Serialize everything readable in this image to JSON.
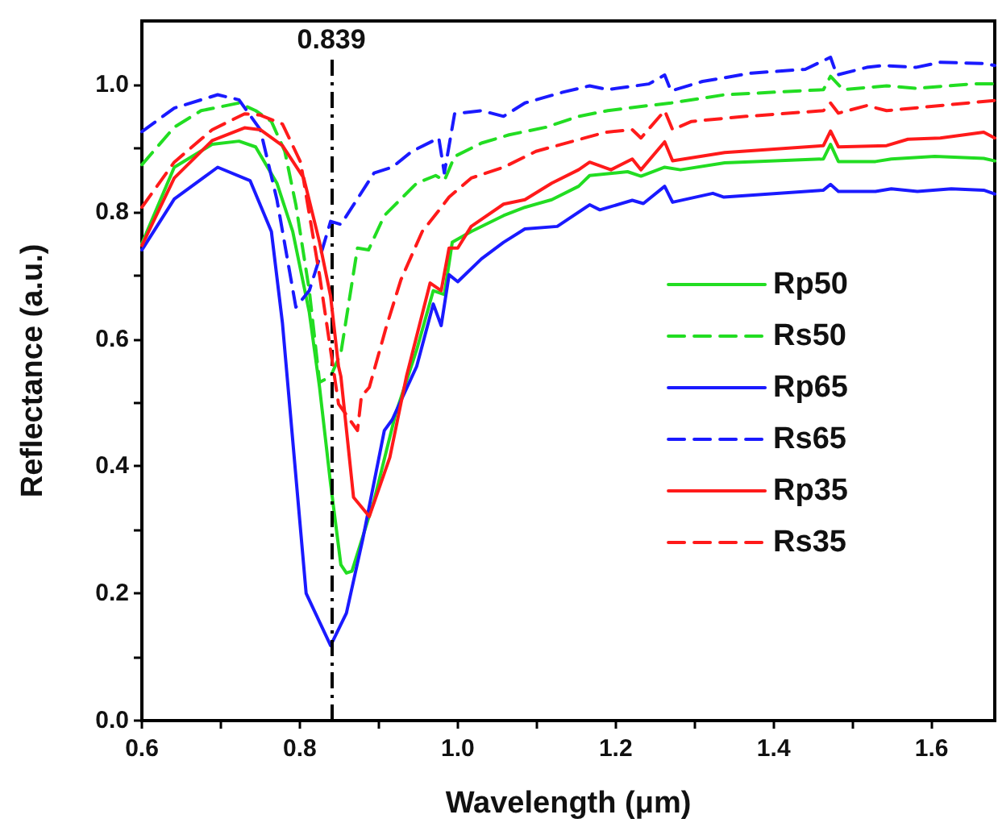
{
  "chart_data": {
    "type": "line",
    "xlabel": "Wavelength (μm)",
    "ylabel": "Reflectance (a.u.)",
    "xlim": [
      0.6,
      1.68
    ],
    "ylim": [
      0,
      1.1
    ],
    "xticks": [
      0.6,
      {
        "value": 0.7,
        "label": null
      },
      0.8,
      {
        "value": 0.9,
        "label": null
      },
      {
        "value": 1,
        "label": "1.0"
      },
      {
        "value": 1.1,
        "label": null
      },
      1.2,
      {
        "value": 1.3,
        "label": null
      },
      1.4,
      {
        "value": 1.5,
        "label": null
      },
      1.6
    ],
    "yticks": [
      {
        "value": 0,
        "label": "0.0"
      },
      {
        "value": 0.1,
        "label": null
      },
      0.2,
      {
        "value": 0.3,
        "label": null
      },
      0.4,
      {
        "value": 0.5,
        "label": null
      },
      0.6,
      {
        "value": 0.7,
        "label": null
      },
      0.8,
      {
        "value": 0.9,
        "label": null
      },
      {
        "value": 1,
        "label": "1.0"
      }
    ],
    "legend": "right",
    "grid": false,
    "marker": "none",
    "ref_lines": [
      {
        "axis": "x",
        "value": 0.839,
        "label": "0.839",
        "color": "#000000",
        "line_style": "dashed"
      }
    ],
    "series": [
      {
        "name": "Rp50",
        "color": "#22dd22",
        "line_style": "solid",
        "x": [
          0.6,
          0.641,
          0.689,
          0.723,
          0.744,
          0.771,
          0.791,
          0.812,
          0.825,
          0.839,
          0.852,
          0.859,
          0.866,
          0.894,
          0.921,
          0.948,
          0.969,
          0.983,
          0.993,
          1.017,
          1.058,
          1.085,
          1.119,
          1.153,
          1.167,
          1.215,
          1.232,
          1.262,
          1.282,
          1.338,
          1.463,
          1.472,
          1.482,
          1.529,
          1.549,
          1.604,
          1.666,
          1.68
        ],
        "values": [
          0.75,
          0.87,
          0.906,
          0.911,
          0.902,
          0.845,
          0.769,
          0.642,
          0.524,
          0.372,
          0.245,
          0.232,
          0.235,
          0.346,
          0.481,
          0.583,
          0.676,
          0.67,
          0.752,
          0.769,
          0.794,
          0.807,
          0.819,
          0.84,
          0.857,
          0.863,
          0.856,
          0.87,
          0.866,
          0.877,
          0.883,
          0.906,
          0.879,
          0.879,
          0.883,
          0.887,
          0.884,
          0.88
        ]
      },
      {
        "name": "Rs50",
        "color": "#22dd22",
        "line_style": "dashed",
        "x": [
          0.6,
          0.641,
          0.675,
          0.723,
          0.744,
          0.764,
          0.781,
          0.795,
          0.812,
          0.825,
          0.839,
          0.852,
          0.873,
          0.887,
          0.907,
          0.948,
          0.972,
          0.983,
          0.996,
          1.03,
          1.065,
          1.112,
          1.153,
          1.19,
          1.242,
          1.27,
          1.338,
          1.463,
          1.472,
          1.488,
          1.543,
          1.58,
          1.652,
          1.68
        ],
        "values": [
          0.874,
          0.933,
          0.959,
          0.971,
          0.959,
          0.942,
          0.895,
          0.811,
          0.676,
          0.532,
          0.541,
          0.578,
          0.743,
          0.74,
          0.794,
          0.845,
          0.857,
          0.849,
          0.887,
          0.908,
          0.921,
          0.933,
          0.95,
          0.959,
          0.967,
          0.971,
          0.984,
          0.992,
          1.013,
          0.992,
          0.998,
          0.994,
          1.001,
          1.001
        ]
      },
      {
        "name": "Rp65",
        "color": "#1a1aff",
        "line_style": "solid",
        "x": [
          0.6,
          0.641,
          0.696,
          0.737,
          0.764,
          0.778,
          0.808,
          0.839,
          0.859,
          0.88,
          0.907,
          0.917,
          0.948,
          0.969,
          0.979,
          0.989,
          1.0,
          1.03,
          1.058,
          1.085,
          1.126,
          1.167,
          1.18,
          1.221,
          1.235,
          1.262,
          1.272,
          1.323,
          1.337,
          1.463,
          1.472,
          1.482,
          1.529,
          1.549,
          1.582,
          1.625,
          1.666,
          1.68
        ],
        "values": [
          0.74,
          0.82,
          0.87,
          0.849,
          0.769,
          0.625,
          0.2,
          0.118,
          0.169,
          0.287,
          0.456,
          0.473,
          0.557,
          0.655,
          0.621,
          0.701,
          0.69,
          0.726,
          0.752,
          0.773,
          0.777,
          0.811,
          0.803,
          0.818,
          0.813,
          0.84,
          0.815,
          0.829,
          0.823,
          0.834,
          0.843,
          0.832,
          0.832,
          0.836,
          0.832,
          0.836,
          0.834,
          0.828
        ]
      },
      {
        "name": "Rs65",
        "color": "#1a1aff",
        "line_style": "dashed",
        "x": [
          0.6,
          0.641,
          0.696,
          0.723,
          0.75,
          0.771,
          0.795,
          0.812,
          0.829,
          0.839,
          0.852,
          0.894,
          0.917,
          0.942,
          0.976,
          0.983,
          0.996,
          1.03,
          1.058,
          1.085,
          1.133,
          1.167,
          1.19,
          1.242,
          1.262,
          1.27,
          1.31,
          1.372,
          1.44,
          1.472,
          1.48,
          1.518,
          1.539,
          1.58,
          1.611,
          1.666,
          1.68
        ],
        "values": [
          0.926,
          0.963,
          0.984,
          0.976,
          0.929,
          0.819,
          0.65,
          0.676,
          0.743,
          0.785,
          0.78,
          0.861,
          0.87,
          0.895,
          0.916,
          0.861,
          0.954,
          0.959,
          0.95,
          0.971,
          0.988,
          0.998,
          0.992,
          1.001,
          1.015,
          0.99,
          1.005,
          1.018,
          1.024,
          1.043,
          1.015,
          1.027,
          1.03,
          1.027,
          1.035,
          1.033,
          1.03
        ]
      },
      {
        "name": "Rp35",
        "color": "#ff1a1a",
        "line_style": "solid",
        "x": [
          0.6,
          0.641,
          0.689,
          0.73,
          0.75,
          0.778,
          0.805,
          0.825,
          0.839,
          0.849,
          0.852,
          0.868,
          0.888,
          0.914,
          0.935,
          0.965,
          0.979,
          0.989,
          1.0,
          1.017,
          1.058,
          1.085,
          1.119,
          1.153,
          1.167,
          1.194,
          1.221,
          1.232,
          1.262,
          1.272,
          1.338,
          1.463,
          1.472,
          1.482,
          1.543,
          1.57,
          1.611,
          1.666,
          1.68
        ],
        "values": [
          0.747,
          0.853,
          0.912,
          0.932,
          0.929,
          0.904,
          0.853,
          0.752,
          0.667,
          0.557,
          0.541,
          0.351,
          0.321,
          0.414,
          0.541,
          0.688,
          0.676,
          0.743,
          0.743,
          0.777,
          0.812,
          0.819,
          0.845,
          0.866,
          0.878,
          0.866,
          0.883,
          0.866,
          0.91,
          0.88,
          0.893,
          0.904,
          0.927,
          0.902,
          0.904,
          0.914,
          0.916,
          0.925,
          0.916
        ]
      },
      {
        "name": "Rs35",
        "color": "#ff1a1a",
        "line_style": "dashed",
        "x": [
          0.6,
          0.641,
          0.689,
          0.73,
          0.75,
          0.778,
          0.801,
          0.825,
          0.849,
          0.873,
          0.878,
          0.888,
          0.909,
          0.928,
          0.955,
          0.976,
          0.989,
          1.017,
          1.058,
          1.099,
          1.146,
          1.187,
          1.221,
          1.232,
          1.262,
          1.272,
          1.296,
          1.365,
          1.463,
          1.472,
          1.482,
          1.518,
          1.543,
          1.611,
          1.68
        ],
        "values": [
          0.807,
          0.878,
          0.929,
          0.954,
          0.952,
          0.938,
          0.878,
          0.7,
          0.498,
          0.456,
          0.51,
          0.524,
          0.617,
          0.693,
          0.769,
          0.802,
          0.823,
          0.853,
          0.87,
          0.895,
          0.911,
          0.925,
          0.929,
          0.916,
          0.959,
          0.929,
          0.942,
          0.95,
          0.959,
          0.971,
          0.955,
          0.967,
          0.959,
          0.967,
          0.975
        ]
      }
    ]
  }
}
